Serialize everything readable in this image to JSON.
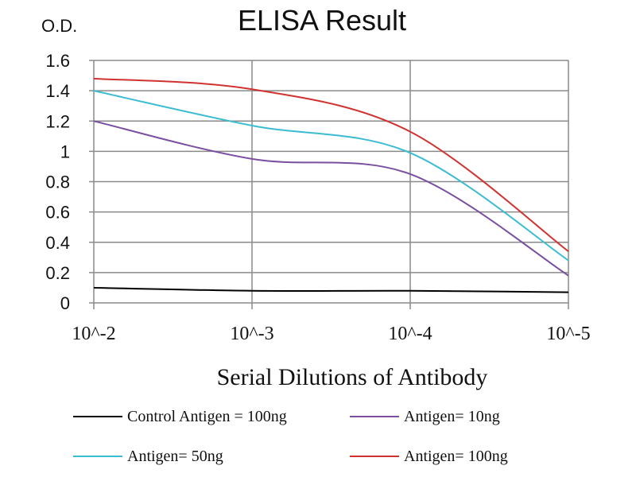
{
  "chart_data": {
    "type": "line",
    "title": "ELISA Result",
    "ylabel": "O.D.",
    "xlabel": "Serial Dilutions  of Antibody",
    "categories": [
      "10^-2",
      "10^-3",
      "10^-4",
      "10^-5"
    ],
    "yticks": [
      "0",
      "0.2",
      "0.4",
      "0.6",
      "0.8",
      "1",
      "1.2",
      "1.4",
      "1.6"
    ],
    "ylim": [
      0,
      1.6
    ],
    "grid": true,
    "legend_placement": "bottom",
    "series": [
      {
        "name": "Control Antigen = 100ng",
        "color": "#000000",
        "values": [
          0.1,
          0.08,
          0.08,
          0.07
        ]
      },
      {
        "name": "Antigen= 10ng",
        "color": "#7a4fa0",
        "values": [
          1.2,
          0.95,
          0.85,
          0.18
        ]
      },
      {
        "name": "Antigen= 50ng",
        "color": "#3bbcd0",
        "values": [
          1.4,
          1.17,
          0.99,
          0.28
        ]
      },
      {
        "name": "Antigen= 100ng",
        "color": "#d0332f",
        "values": [
          1.48,
          1.41,
          1.13,
          0.34
        ]
      }
    ]
  }
}
